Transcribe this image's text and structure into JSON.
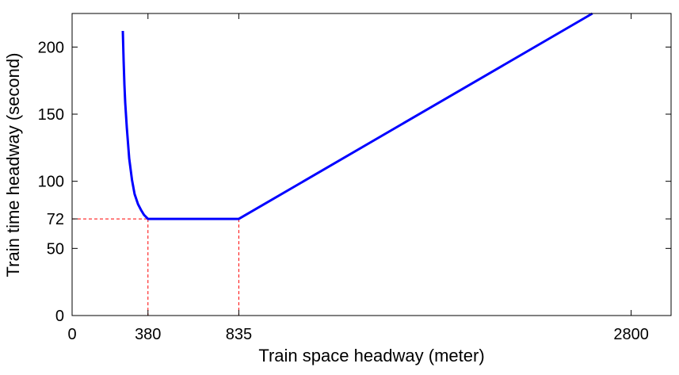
{
  "chart_data": {
    "type": "line",
    "xlabel": "Train space headway (meter)",
    "ylabel": "Train time headway (second)",
    "series": [
      {
        "color": "#0000ff",
        "x": [
          254,
          258,
          262,
          266,
          274,
          286,
          300,
          313,
          330,
          345,
          360,
          380,
          835,
          2606
        ],
        "values": [
          212,
          190,
          172,
          158.6,
          140,
          117,
          101,
          90.5,
          83,
          78.7,
          75,
          72,
          72,
          225
        ]
      }
    ],
    "ref_x": [
      380,
      835
    ],
    "ref_y": 72,
    "ref_color": "#ff0000",
    "xlim": [
      0,
      3000
    ],
    "ylim": [
      0,
      225
    ],
    "xticks": [
      0,
      380,
      835,
      2800
    ],
    "yticks": [
      0,
      50,
      72,
      100,
      150,
      200
    ]
  }
}
